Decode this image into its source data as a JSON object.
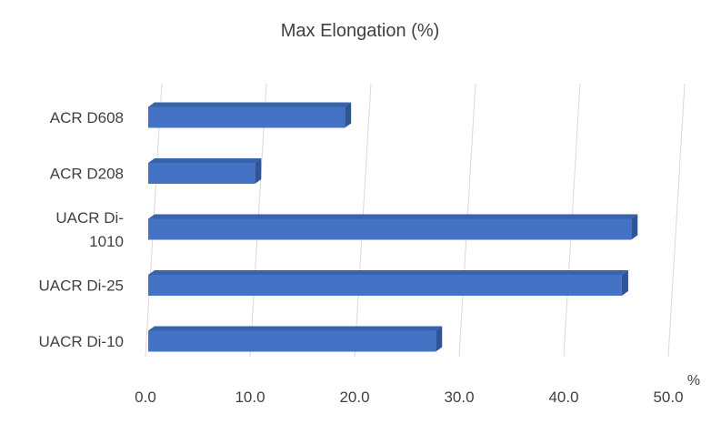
{
  "chart_data": {
    "type": "bar",
    "orientation": "horizontal",
    "title": "Max Elongation (%)",
    "xlabel": "%",
    "ylabel": "",
    "categories": [
      "ACR D608",
      "ACR D208",
      "UACR Di-1010",
      "UACR Di-25",
      "UACR Di-10"
    ],
    "category_label_lines": [
      [
        "ACR D608"
      ],
      [
        "ACR D208"
      ],
      [
        "UACR Di-",
        "1010"
      ],
      [
        "UACR Di-25"
      ],
      [
        "UACR Di-10"
      ]
    ],
    "values": [
      18.8,
      10.2,
      46.2,
      45.3,
      27.5
    ],
    "xlim": [
      0,
      50
    ],
    "x_ticks": [
      0,
      10,
      20,
      30,
      40,
      50
    ],
    "x_tick_labels": [
      "0.0",
      "10.0",
      "20.0",
      "30.0",
      "40.0",
      "50.0"
    ],
    "grid": true,
    "legend": "none",
    "style": "3d-clustered-bar"
  },
  "colors": {
    "bar_front": "#4472c4",
    "bar_top": "#3a63ad",
    "bar_side": "#2f5597",
    "gridline": "#d9d9d9",
    "text": "#404040"
  }
}
